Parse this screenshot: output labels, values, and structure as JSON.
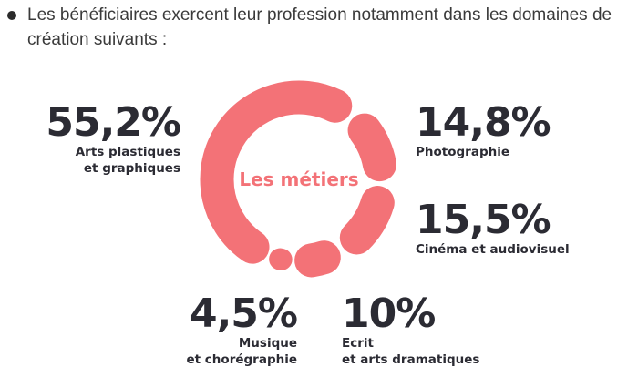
{
  "intro": "Les bénéficiaires exercent leur profession notamment dans les domaines de création suivants :",
  "chart_data": {
    "type": "pie",
    "title": "",
    "center_label": "Les métiers",
    "color": "#f37277",
    "slices": [
      {
        "pct_label": "55,2%",
        "value": 55.2,
        "label_lines": [
          "Arts plastiques",
          "et graphiques"
        ]
      },
      {
        "pct_label": "14,8%",
        "value": 14.8,
        "label_lines": [
          "Photographie"
        ]
      },
      {
        "pct_label": "15,5%",
        "value": 15.5,
        "label_lines": [
          "Cinéma et audiovisuel"
        ]
      },
      {
        "pct_label": "10%",
        "value": 10,
        "label_lines": [
          "Ecrit",
          "et arts dramatiques"
        ]
      },
      {
        "pct_label": "4,5%",
        "value": 4.5,
        "label_lines": [
          "Musique",
          "et chorégraphie"
        ]
      }
    ]
  }
}
